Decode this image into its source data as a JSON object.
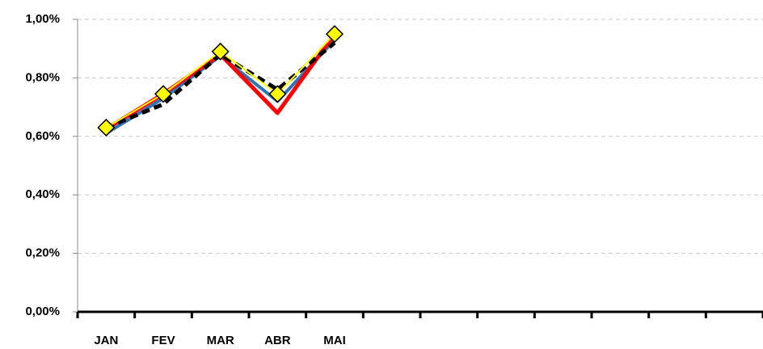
{
  "chart_data": {
    "type": "line",
    "categories": [
      "JAN",
      "FEV",
      "MAR",
      "ABR",
      "MAI",
      null,
      null,
      null,
      null,
      null,
      null,
      null
    ],
    "series": [
      {
        "color": "#2e75b6",
        "width": 4,
        "values": [
          0.61,
          0.73,
          0.875,
          0.72,
          0.93,
          null,
          null,
          null,
          null,
          null,
          null,
          null
        ]
      },
      {
        "color": "#ff0000",
        "width": 5,
        "values": [
          0.625,
          0.745,
          0.88,
          0.68,
          0.95,
          null,
          null,
          null,
          null,
          null,
          null,
          null
        ]
      },
      {
        "color": "#000000",
        "width": 5,
        "dash": true,
        "values": [
          0.63,
          0.71,
          0.88,
          0.76,
          0.92,
          null,
          null,
          null,
          null,
          null,
          null,
          null
        ]
      },
      {
        "color": "#ffff00",
        "width": 2,
        "marker": "diamond",
        "values": [
          0.63,
          0.745,
          0.89,
          0.745,
          0.95,
          null,
          null,
          null,
          null,
          null,
          null,
          null
        ]
      }
    ],
    "ylim": [
      0,
      1
    ],
    "yticks": [
      {
        "value": 0,
        "label": "0,00%"
      },
      {
        "value": 0.2,
        "label": "0,20%"
      },
      {
        "value": 0.4,
        "label": "0,40%"
      },
      {
        "value": 0.6,
        "label": "0,60%"
      },
      {
        "value": 0.8,
        "label": "0,80%"
      },
      {
        "value": 1,
        "label": "1,00%"
      }
    ],
    "grid": true
  }
}
